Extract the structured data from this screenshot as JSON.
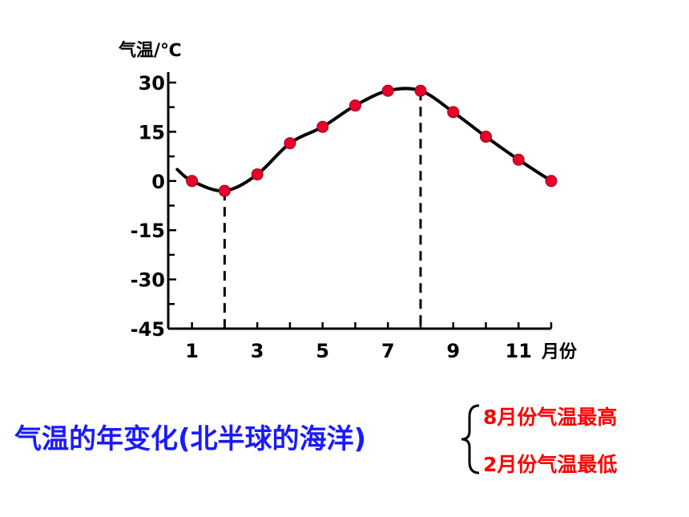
{
  "chart_data": {
    "type": "line",
    "title": "",
    "ylabel": "气温/℃",
    "xlabel": "月份",
    "ylim": [
      -45,
      30
    ],
    "yticks": [
      -45,
      -30,
      -15,
      0,
      15,
      30
    ],
    "ytick_labels": [
      "-45",
      "-30",
      "-15",
      "0",
      "15",
      "30"
    ],
    "xlim": [
      0.2,
      12.0
    ],
    "xticks": [
      1,
      3,
      5,
      7,
      9,
      11
    ],
    "xtick_labels": [
      "1",
      "3",
      "5",
      "7",
      "9",
      "11"
    ],
    "x": [
      1,
      2,
      3,
      4,
      5,
      6,
      7,
      8,
      9,
      10,
      11,
      12
    ],
    "values": [
      0,
      -3,
      2,
      11.5,
      16.5,
      23,
      27.5,
      27.5,
      21,
      13.5,
      6.5,
      0
    ],
    "markers": true,
    "marker_color": "#e8002a",
    "line_color": "#000000",
    "dashed_reference_x": [
      2,
      8
    ],
    "grid": false
  },
  "caption": {
    "text": "气温的年变化(北半球的海洋)",
    "color": "#1a1aff"
  },
  "notes": {
    "max": "8月份气温最高",
    "min": "2月份气温最低",
    "color": "#ff0000"
  }
}
